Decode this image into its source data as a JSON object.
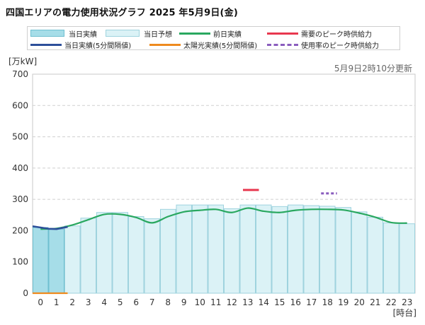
{
  "title": "四国エリアの電力使用状況グラフ 2025 年5月9日(金)",
  "unit_label": "[万kW]",
  "x_unit_label": "[時台]",
  "updated_text": "5月9日2時10分更新",
  "legend": [
    {
      "label": "当日実績",
      "kind": "box",
      "fill": "#a6dde8",
      "stroke": "#6fbfd0"
    },
    {
      "label": "当日予想",
      "kind": "box",
      "fill": "#dbf2f6",
      "stroke": "#9fd3de"
    },
    {
      "label": "前日実績",
      "kind": "line",
      "color": "#2aa860"
    },
    {
      "label": "需要のピーク時供給力",
      "kind": "line",
      "color": "#e8384f"
    },
    {
      "label": "当日実績(5分間隔値)",
      "kind": "line",
      "color": "#2d4f9a"
    },
    {
      "label": "太陽光実績(5分間隔値)",
      "kind": "line",
      "color": "#ee8a1e"
    },
    {
      "label": "使用率のピーク時供給力",
      "kind": "dash",
      "color": "#8a5dbe"
    }
  ],
  "chart_data": {
    "type": "bar",
    "title": "四国エリアの電力使用状況グラフ 2025 年5月9日(金)",
    "xlabel": "[時台]",
    "ylabel": "[万kW]",
    "ylim": [
      0,
      700
    ],
    "yticks": [
      0,
      100,
      200,
      300,
      400,
      500,
      600,
      700
    ],
    "categories": [
      "0",
      "1",
      "2",
      "3",
      "4",
      "5",
      "6",
      "7",
      "8",
      "9",
      "10",
      "11",
      "12",
      "13",
      "14",
      "15",
      "16",
      "17",
      "18",
      "19",
      "20",
      "21",
      "22",
      "23"
    ],
    "series": [
      {
        "name": "当日実績",
        "type": "bar",
        "values": [
          210,
          205,
          null,
          null,
          null,
          null,
          null,
          null,
          null,
          null,
          null,
          null,
          null,
          null,
          null,
          null,
          null,
          null,
          null,
          null,
          null,
          null,
          null,
          null
        ]
      },
      {
        "name": "当日予想",
        "type": "bar",
        "values": [
          null,
          null,
          215,
          240,
          258,
          258,
          245,
          238,
          268,
          282,
          282,
          282,
          270,
          282,
          282,
          277,
          282,
          280,
          278,
          274,
          260,
          243,
          225,
          222
        ]
      },
      {
        "name": "前日実績",
        "type": "line",
        "x": [
          0,
          1,
          2,
          3,
          4,
          5,
          6,
          7,
          8,
          9,
          10,
          11,
          12,
          13,
          14,
          15,
          16,
          17,
          18,
          19,
          20,
          21,
          22,
          23
        ],
        "values": [
          205,
          207,
          218,
          235,
          252,
          252,
          242,
          225,
          245,
          260,
          265,
          268,
          258,
          272,
          262,
          258,
          265,
          268,
          268,
          266,
          256,
          243,
          226,
          224
        ]
      },
      {
        "name": "当日実績(5分間隔値)",
        "type": "line",
        "x": [
          -0.5,
          0.0,
          0.5,
          1.0,
          1.3,
          1.7
        ],
        "values": [
          214,
          210,
          206,
          205,
          208,
          212
        ]
      },
      {
        "name": "太陽光実績(5分間隔値)",
        "type": "line",
        "x": [
          -0.5,
          1.7
        ],
        "values": [
          0,
          0
        ]
      },
      {
        "name": "需要のピーク時供給力",
        "type": "segment",
        "x": [
          12.7,
          13.7
        ],
        "values": [
          330,
          330
        ]
      },
      {
        "name": "使用率のピーク時供給力",
        "type": "segment",
        "x": [
          17.6,
          18.6
        ],
        "values": [
          319,
          319
        ]
      }
    ]
  }
}
